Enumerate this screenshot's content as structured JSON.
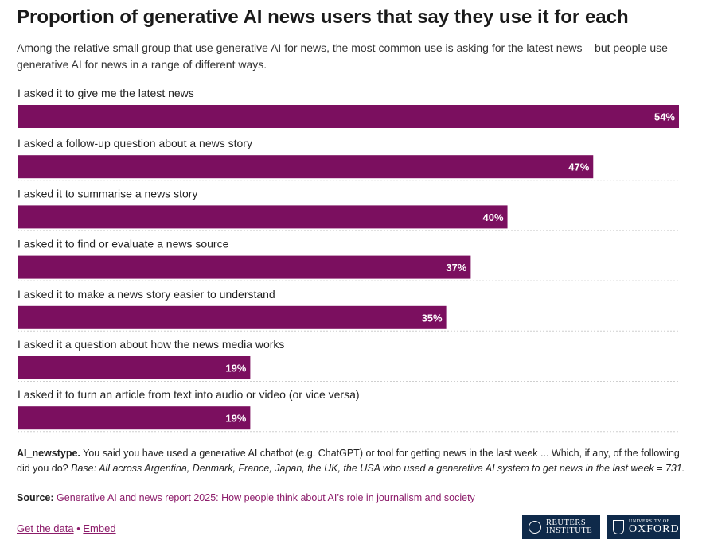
{
  "header": {
    "title": "Proportion of generative AI news users that say they use it for each",
    "subtitle": "Among the relative small group that use generative AI for news, the most common use is asking for the latest news – but people use generative AI for news in a range of different ways."
  },
  "chart_data": {
    "type": "bar",
    "orientation": "horizontal",
    "categories": [
      "I asked it to give me the latest news",
      "I asked a follow-up question about a news story",
      "I asked it to summarise a news story",
      "I asked it to find or evaluate a news source",
      "I asked it to make a news story easier to understand",
      "I asked it a question about how the news media works",
      "I asked it to turn an article from text into audio or video (or vice versa)"
    ],
    "values": [
      54,
      47,
      40,
      37,
      35,
      19,
      19
    ],
    "value_labels": [
      "54%",
      "47%",
      "40%",
      "37%",
      "35%",
      "19%",
      "19%"
    ],
    "unit": "%",
    "xlim": [
      0,
      54
    ],
    "bar_color": "#7b0f5f",
    "grid": false
  },
  "footnote": {
    "question_code": "AI_newstype.",
    "question_text": "You said you have used a generative AI chatbot (e.g. ChatGPT) or tool for getting news in the last week ... Which, if any, of the following did you do?",
    "base": "Base: All across Argentina, Denmark, France, Japan, the UK, the USA who used a generative AI system to get news in the last week = 731."
  },
  "source": {
    "label": "Source:",
    "link_text": "Generative AI and news report 2025: How people think about AI’s role in journalism and society"
  },
  "links": {
    "get_data": "Get the data",
    "separator": "•",
    "embed": "Embed"
  },
  "logos": {
    "reuters_line1": "REUTERS",
    "reuters_line2": "INSTITUTE",
    "oxford_small": "UNIVERSITY OF",
    "oxford_big": "OXFORD"
  },
  "colors": {
    "accent": "#8c1c6a",
    "bar": "#7b0f5f",
    "logo_bg": "#0f2a4a"
  }
}
